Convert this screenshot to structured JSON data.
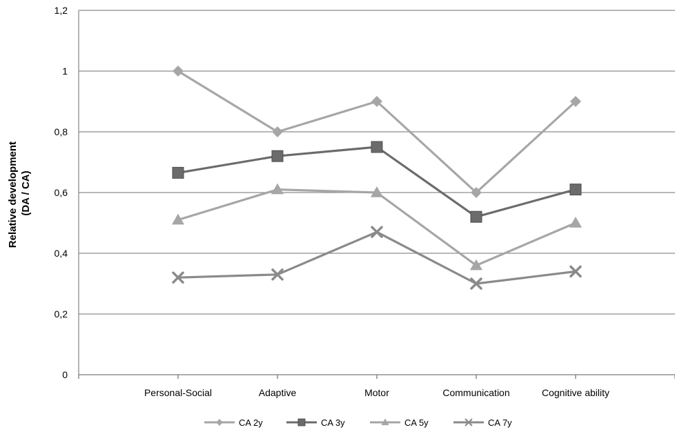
{
  "chart_data": {
    "type": "line",
    "categories": [
      "Personal-Social",
      "Adaptive",
      "Motor",
      "Communication",
      "Cognitive ability"
    ],
    "ylabel_line1": "Relative development",
    "ylabel_line2": "(DA  /  CA)",
    "ylim": [
      0,
      1.2
    ],
    "yticks": [
      "0",
      "0,2",
      "0,4",
      "0,6",
      "0,8",
      "1",
      "1,2"
    ],
    "grid": true,
    "legend_position": "bottom",
    "series": [
      {
        "name": "CA 2y",
        "values": [
          1.0,
          0.8,
          0.9,
          0.6,
          0.9
        ],
        "marker": "diamond",
        "color": "#a6a6a6"
      },
      {
        "name": "CA 3y",
        "values": [
          0.665,
          0.72,
          0.75,
          0.52,
          0.61
        ],
        "marker": "square",
        "color": "#6b6b6b"
      },
      {
        "name": "CA 5y",
        "values": [
          0.51,
          0.61,
          0.6,
          0.36,
          0.5
        ],
        "marker": "triangle",
        "color": "#a6a6a6"
      },
      {
        "name": "CA 7y",
        "values": [
          0.32,
          0.33,
          0.47,
          0.3,
          0.34
        ],
        "marker": "x",
        "color": "#8a8a8a"
      }
    ]
  }
}
